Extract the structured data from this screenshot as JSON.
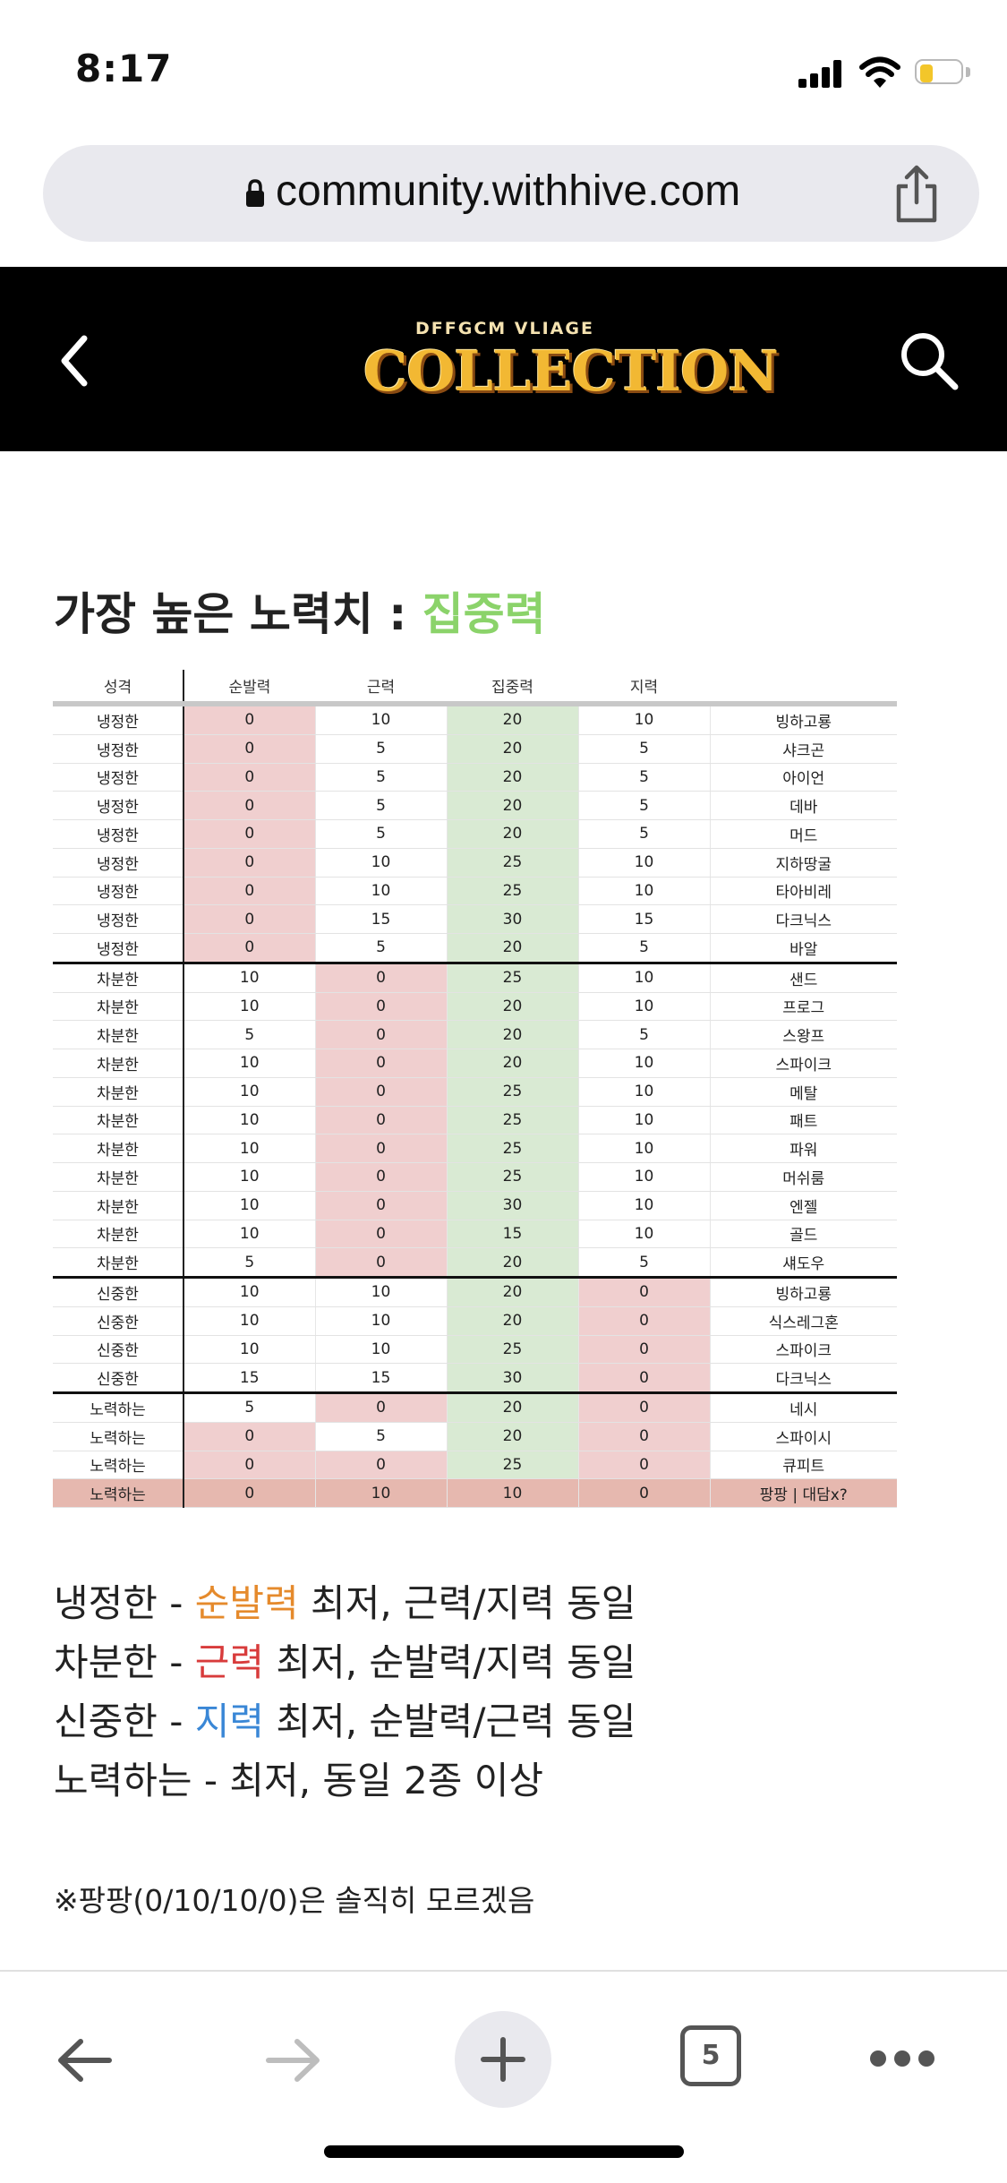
{
  "status": {
    "time": "8:17"
  },
  "browser": {
    "url": "community.withhive.com",
    "tab_count": "5"
  },
  "header": {
    "logo_top": "DFFGCM VLIAGE",
    "logo_main": "COLLECTION"
  },
  "heading": {
    "prefix": "가장 높은 노력치 : ",
    "accent": "집중력",
    "accent_color": "#8bd36a"
  },
  "table": {
    "columns": [
      "성격",
      "순발력",
      "근력",
      "집중력",
      "지력",
      ""
    ],
    "rows": [
      [
        "냉정한",
        "0",
        "10",
        "20",
        "10",
        "빙하고룡"
      ],
      [
        "냉정한",
        "0",
        "5",
        "20",
        "5",
        "샤크곤"
      ],
      [
        "냉정한",
        "0",
        "5",
        "20",
        "5",
        "아이언"
      ],
      [
        "냉정한",
        "0",
        "5",
        "20",
        "5",
        "데바"
      ],
      [
        "냉정한",
        "0",
        "5",
        "20",
        "5",
        "머드"
      ],
      [
        "냉정한",
        "0",
        "10",
        "25",
        "10",
        "지하땅굴"
      ],
      [
        "냉정한",
        "0",
        "10",
        "25",
        "10",
        "타아비레"
      ],
      [
        "냉정한",
        "0",
        "15",
        "30",
        "15",
        "다크닉스"
      ],
      [
        "냉정한",
        "0",
        "5",
        "20",
        "5",
        "바알"
      ],
      [
        "차분한",
        "10",
        "0",
        "25",
        "10",
        "샌드"
      ],
      [
        "차분한",
        "10",
        "0",
        "20",
        "10",
        "프로그"
      ],
      [
        "차분한",
        "5",
        "0",
        "20",
        "5",
        "스왕프"
      ],
      [
        "차분한",
        "10",
        "0",
        "20",
        "10",
        "스파이크"
      ],
      [
        "차분한",
        "10",
        "0",
        "25",
        "10",
        "메탈"
      ],
      [
        "차분한",
        "10",
        "0",
        "25",
        "10",
        "패트"
      ],
      [
        "차분한",
        "10",
        "0",
        "25",
        "10",
        "파워"
      ],
      [
        "차분한",
        "10",
        "0",
        "25",
        "10",
        "머쉬룸"
      ],
      [
        "차분한",
        "10",
        "0",
        "30",
        "10",
        "엔젤"
      ],
      [
        "차분한",
        "10",
        "0",
        "15",
        "10",
        "골드"
      ],
      [
        "차분한",
        "5",
        "0",
        "20",
        "5",
        "섀도우"
      ],
      [
        "신중한",
        "10",
        "10",
        "20",
        "0",
        "빙하고룡"
      ],
      [
        "신중한",
        "10",
        "10",
        "20",
        "0",
        "식스레그혼"
      ],
      [
        "신중한",
        "10",
        "10",
        "25",
        "0",
        "스파이크"
      ],
      [
        "신중한",
        "15",
        "15",
        "30",
        "0",
        "다크닉스"
      ],
      [
        "노력하는",
        "5",
        "0",
        "20",
        "0",
        "네시"
      ],
      [
        "노력하는",
        "0",
        "5",
        "20",
        "0",
        "스파이시"
      ],
      [
        "노력하는",
        "0",
        "0",
        "25",
        "0",
        "큐피트"
      ],
      [
        "노력하는",
        "0",
        "10",
        "10",
        "0",
        "팡팡 | 대담x?"
      ]
    ],
    "cell_colors": {
      "red": "#f0cfcf",
      "green": "#d9ead3",
      "highlight": "#e6b8af"
    }
  },
  "legend": [
    {
      "prefix": "냉정한 - ",
      "accent": "순발력",
      "suffix": " 최저, 근력/지력 동일",
      "accent_color": "#e58a2c"
    },
    {
      "prefix": "차분한 - ",
      "accent": "근력",
      "suffix": " 최저, 순발력/지력 동일",
      "accent_color": "#d83b3b"
    },
    {
      "prefix": "신중한 - ",
      "accent": "지력",
      "suffix": " 최저, 순발력/근력 동일",
      "accent_color": "#3a87d6"
    },
    {
      "prefix": "노력하는 - 최저, 동일 2종 이상",
      "accent": "",
      "suffix": ""
    }
  ],
  "note": "※팡팡(0/10/10/0)은 솔직히 모르겠음",
  "icons": {
    "back": "chevron-left-icon",
    "search": "search-icon",
    "share": "share-icon",
    "lock": "lock-icon"
  }
}
